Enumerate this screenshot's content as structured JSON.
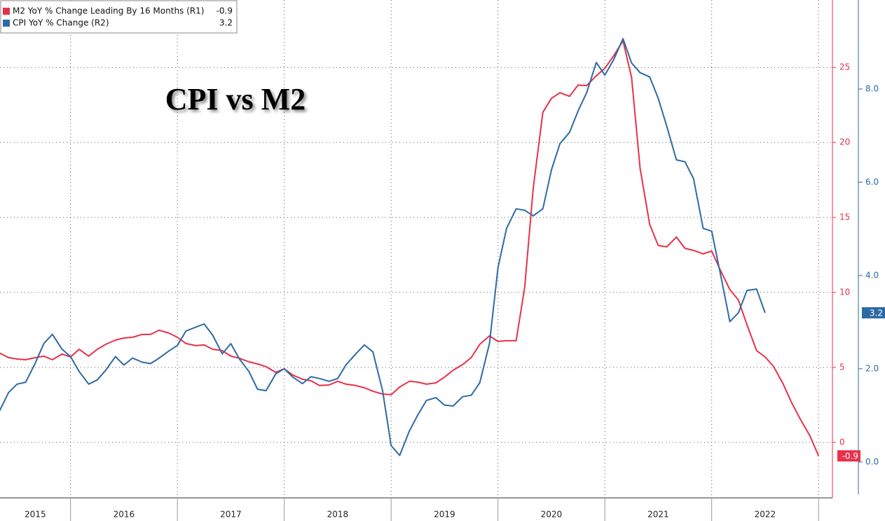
{
  "chart_data": {
    "type": "line",
    "title": "CPI vs M2",
    "categories": [
      "2015",
      "2016",
      "2017",
      "2018",
      "2019",
      "2020",
      "2021",
      "2022"
    ],
    "xlim": [
      2015.34,
      2023.13
    ],
    "xticks": [
      2016,
      2017,
      2018,
      2019,
      2020,
      2021,
      2022,
      2023
    ],
    "ylim": [
      -3.7,
      29.5
    ],
    "yticks": [
      0,
      5,
      10,
      15,
      20,
      25
    ],
    "y2lim": [
      -0.77,
      9.91
    ],
    "y2ticks": [
      {
        "value": 0,
        "label": "0.0"
      },
      {
        "value": 2,
        "label": "2.0"
      },
      {
        "value": 4,
        "label": "4.0"
      },
      {
        "value": 6,
        "label": "6.0"
      },
      {
        "value": 8,
        "label": "8.0"
      }
    ],
    "grid": true,
    "legend": "top-left",
    "series": [
      {
        "name": "M2 YoY % Change Leading By 16 Months (R1)",
        "color": "#e8314a",
        "axis": "y",
        "x": [
          2015.33,
          2015.42,
          2015.5,
          2015.58,
          2015.67,
          2015.75,
          2015.83,
          2015.92,
          2016,
          2016.08,
          2016.17,
          2016.25,
          2016.33,
          2016.42,
          2016.5,
          2016.58,
          2016.67,
          2016.75,
          2016.83,
          2016.92,
          2017,
          2017.08,
          2017.17,
          2017.25,
          2017.33,
          2017.42,
          2017.5,
          2017.58,
          2017.67,
          2017.75,
          2017.83,
          2017.92,
          2018,
          2018.08,
          2018.17,
          2018.25,
          2018.33,
          2018.42,
          2018.5,
          2018.58,
          2018.67,
          2018.75,
          2018.83,
          2018.92,
          2019,
          2019.08,
          2019.17,
          2019.25,
          2019.33,
          2019.42,
          2019.5,
          2019.58,
          2019.67,
          2019.75,
          2019.83,
          2019.92,
          2020,
          2020.08,
          2020.17,
          2020.25,
          2020.33,
          2020.42,
          2020.5,
          2020.58,
          2020.67,
          2020.75,
          2020.83,
          2020.92,
          2021,
          2021.08,
          2021.17,
          2021.25,
          2021.33,
          2021.42,
          2021.5,
          2021.58,
          2021.67,
          2021.75,
          2021.83,
          2021.92,
          2022,
          2022.08,
          2022.17,
          2022.25,
          2022.33,
          2022.42,
          2022.5,
          2022.58,
          2022.67,
          2022.75,
          2022.83,
          2022.92,
          2023
        ],
        "values": [
          5.98,
          5.65,
          5.56,
          5.51,
          5.65,
          5.75,
          5.51,
          5.89,
          5.7,
          6.21,
          5.75,
          6.21,
          6.54,
          6.82,
          6.96,
          7.01,
          7.2,
          7.2,
          7.48,
          7.29,
          7.01,
          6.59,
          6.45,
          6.5,
          6.21,
          6.12,
          5.75,
          5.61,
          5.37,
          5.23,
          5.05,
          4.67,
          4.91,
          4.49,
          4.21,
          4.11,
          3.79,
          3.83,
          4.07,
          3.88,
          3.79,
          3.64,
          3.41,
          3.22,
          3.18,
          3.69,
          4.07,
          4.02,
          3.88,
          3.97,
          4.35,
          4.81,
          5.19,
          5.65,
          6.54,
          7.1,
          6.73,
          6.78,
          6.78,
          10.33,
          16.96,
          22.01,
          22.94,
          23.32,
          23.08,
          23.83,
          23.79,
          24.44,
          24.95,
          25.75,
          26.78,
          24.35,
          18.27,
          14.53,
          13.13,
          13.04,
          13.69,
          12.94,
          12.8,
          12.57,
          12.76,
          11.5,
          10.19,
          9.49,
          7.85,
          6.12,
          5.7,
          5.05,
          3.88,
          2.62,
          1.54,
          0.42,
          -0.9
        ]
      },
      {
        "name": "CPI YoY % Change (R2)",
        "color": "#2d6aa5",
        "axis": "y2",
        "x": [
          2015.33,
          2015.42,
          2015.5,
          2015.58,
          2015.67,
          2015.75,
          2015.83,
          2015.92,
          2016,
          2016.08,
          2016.17,
          2016.25,
          2016.33,
          2016.42,
          2016.5,
          2016.58,
          2016.67,
          2016.75,
          2016.83,
          2016.92,
          2017,
          2017.08,
          2017.17,
          2017.25,
          2017.33,
          2017.42,
          2017.5,
          2017.58,
          2017.67,
          2017.75,
          2017.83,
          2017.92,
          2018,
          2018.08,
          2018.17,
          2018.25,
          2018.33,
          2018.42,
          2018.5,
          2018.58,
          2018.67,
          2018.75,
          2018.83,
          2018.92,
          2019,
          2019.08,
          2019.17,
          2019.25,
          2019.33,
          2019.42,
          2019.5,
          2019.58,
          2019.67,
          2019.75,
          2019.83,
          2019.92,
          2020,
          2020.08,
          2020.17,
          2020.25,
          2020.33,
          2020.42,
          2020.5,
          2020.58,
          2020.67,
          2020.75,
          2020.83,
          2020.92,
          2021,
          2021.08,
          2021.17,
          2021.25,
          2021.33,
          2021.42,
          2021.5,
          2021.58,
          2021.67,
          2021.75,
          2021.83,
          2021.92,
          2022,
          2022.08,
          2022.17,
          2022.25,
          2022.33,
          2022.42,
          2022.5
        ],
        "values": [
          1.07,
          1.49,
          1.67,
          1.71,
          2.12,
          2.54,
          2.74,
          2.42,
          2.26,
          1.94,
          1.67,
          1.76,
          1.97,
          2.26,
          2.08,
          2.23,
          2.14,
          2.11,
          2.23,
          2.38,
          2.5,
          2.81,
          2.89,
          2.96,
          2.72,
          2.32,
          2.54,
          2.21,
          1.94,
          1.56,
          1.53,
          1.89,
          2.0,
          1.82,
          1.68,
          1.83,
          1.79,
          1.73,
          1.79,
          2.09,
          2.32,
          2.51,
          2.36,
          1.53,
          0.35,
          0.14,
          0.66,
          1.01,
          1.32,
          1.38,
          1.22,
          1.2,
          1.4,
          1.43,
          1.7,
          2.54,
          4.17,
          5.01,
          5.43,
          5.4,
          5.28,
          5.43,
          6.26,
          6.83,
          7.07,
          7.53,
          7.92,
          8.57,
          8.3,
          8.62,
          9.08,
          8.56,
          8.35,
          8.26,
          7.8,
          7.2,
          6.48,
          6.44,
          6.08,
          5.01,
          4.95,
          4.05,
          3.01,
          3.2,
          3.68,
          3.71,
          3.2
        ]
      }
    ]
  }
}
